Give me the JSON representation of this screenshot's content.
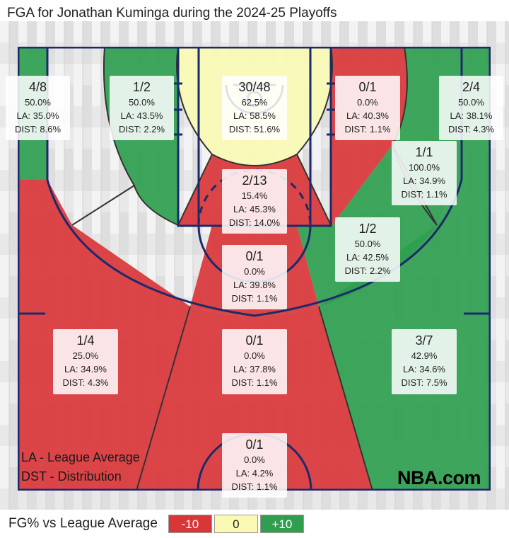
{
  "title": "FGA for Jonathan Kuminga during the 2024-25 Playoffs",
  "chart_data": {
    "type": "shot-chart",
    "title": "FGA for Jonathan Kuminga during the 2024-25 Playoffs",
    "zones": [
      {
        "id": "left-corner-3",
        "fg": "4/8",
        "pct": "50.0%",
        "la": "LA: 35.0%",
        "dist": "DIST: 8.6%",
        "color": "#2f9e4f"
      },
      {
        "id": "left-baseline-mid",
        "fg": "1/2",
        "pct": "50.0%",
        "la": "LA: 43.5%",
        "dist": "DIST: 2.2%",
        "color": "#2f9e4f"
      },
      {
        "id": "restricted-area",
        "fg": "30/48",
        "pct": "62.5%",
        "la": "LA: 58.5%",
        "dist": "DIST: 51.6%",
        "color": "#fafab4"
      },
      {
        "id": "right-baseline-mid",
        "fg": "0/1",
        "pct": "0.0%",
        "la": "LA: 40.3%",
        "dist": "DIST: 1.1%",
        "color": "#d9363a"
      },
      {
        "id": "right-corner-3",
        "fg": "2/4",
        "pct": "50.0%",
        "la": "LA: 38.1%",
        "dist": "DIST: 4.3%",
        "color": "#2f9e4f"
      },
      {
        "id": "right-short-mid",
        "fg": "1/1",
        "pct": "100.0%",
        "la": "LA: 34.9%",
        "dist": "DIST: 1.1%",
        "color": "#2f9e4f"
      },
      {
        "id": "paint-non-ra",
        "fg": "2/13",
        "pct": "15.4%",
        "la": "LA: 45.3%",
        "dist": "DIST: 14.0%",
        "color": "#d9363a"
      },
      {
        "id": "right-wing-mid",
        "fg": "1/2",
        "pct": "50.0%",
        "la": "LA: 42.5%",
        "dist": "DIST: 2.2%",
        "color": "#2f9e4f"
      },
      {
        "id": "center-mid",
        "fg": "0/1",
        "pct": "0.0%",
        "la": "LA: 39.8%",
        "dist": "DIST: 1.1%",
        "color": "#d9363a"
      },
      {
        "id": "left-wing-3",
        "fg": "1/4",
        "pct": "25.0%",
        "la": "LA: 34.9%",
        "dist": "DIST: 4.3%",
        "color": "#d9363a"
      },
      {
        "id": "center-3",
        "fg": "0/1",
        "pct": "0.0%",
        "la": "LA: 37.8%",
        "dist": "DIST: 1.1%",
        "color": "#d9363a"
      },
      {
        "id": "right-wing-3",
        "fg": "3/7",
        "pct": "42.9%",
        "la": "LA: 34.6%",
        "dist": "DIST: 7.5%",
        "color": "#2f9e4f"
      },
      {
        "id": "backcourt",
        "fg": "0/1",
        "pct": "0.0%",
        "la": "LA: 4.2%",
        "dist": "DIST: 1.1%",
        "color": "#d9363a"
      }
    ]
  },
  "legend": {
    "la_note": "LA - League Average",
    "dst_note": "DST - Distribution"
  },
  "brand": "NBA.com",
  "scale": {
    "label": "FG% vs League Average",
    "neg": "-10",
    "zero": "0",
    "pos": "+10"
  },
  "colors": {
    "below": "#d9363a",
    "neutral": "#fafab4",
    "above": "#2f9e4f",
    "court_lines": "#1b2a6b",
    "wood": "#e9e9e9"
  }
}
